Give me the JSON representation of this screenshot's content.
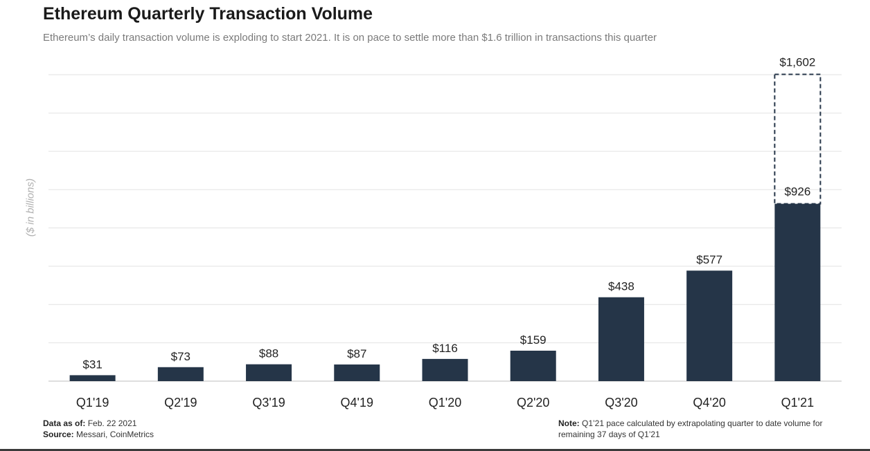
{
  "chart_data": {
    "type": "bar",
    "title": "Ethereum Quarterly Transaction Volume",
    "subtitle": "Ethereum’s daily transaction volume is exploding to start 2021.  It is on pace to settle  more than $1.6 trillion in transactions this quarter",
    "ylabel": "($ in billions)",
    "xlabel": "",
    "categories": [
      "Q1'19",
      "Q2'19",
      "Q3'19",
      "Q4'19",
      "Q1'20",
      "Q2'20",
      "Q3'20",
      "Q4'20",
      "Q1'21"
    ],
    "values": [
      31,
      73,
      88,
      87,
      116,
      159,
      438,
      577,
      926
    ],
    "value_labels": [
      "$31",
      "$73",
      "$88",
      "$87",
      "$116",
      "$159",
      "$438",
      "$577",
      "$926"
    ],
    "projected": {
      "category": "Q1'21",
      "value": 1602,
      "label": "$1,602"
    },
    "ylim": [
      0,
      1600
    ],
    "grid": true,
    "bar_color": "#253548",
    "projected_color": "#253548"
  },
  "footer": {
    "data_as_of_label": "Data as of:",
    "data_as_of_value": " Feb. 22 2021",
    "source_label": "Source:",
    "source_value": " Messari, CoinMetrics",
    "note_label": "Note:",
    "note_value": " Q1’21 pace calculated by extrapolating  quarter to date volume for remaining  37 days of Q1’21"
  }
}
